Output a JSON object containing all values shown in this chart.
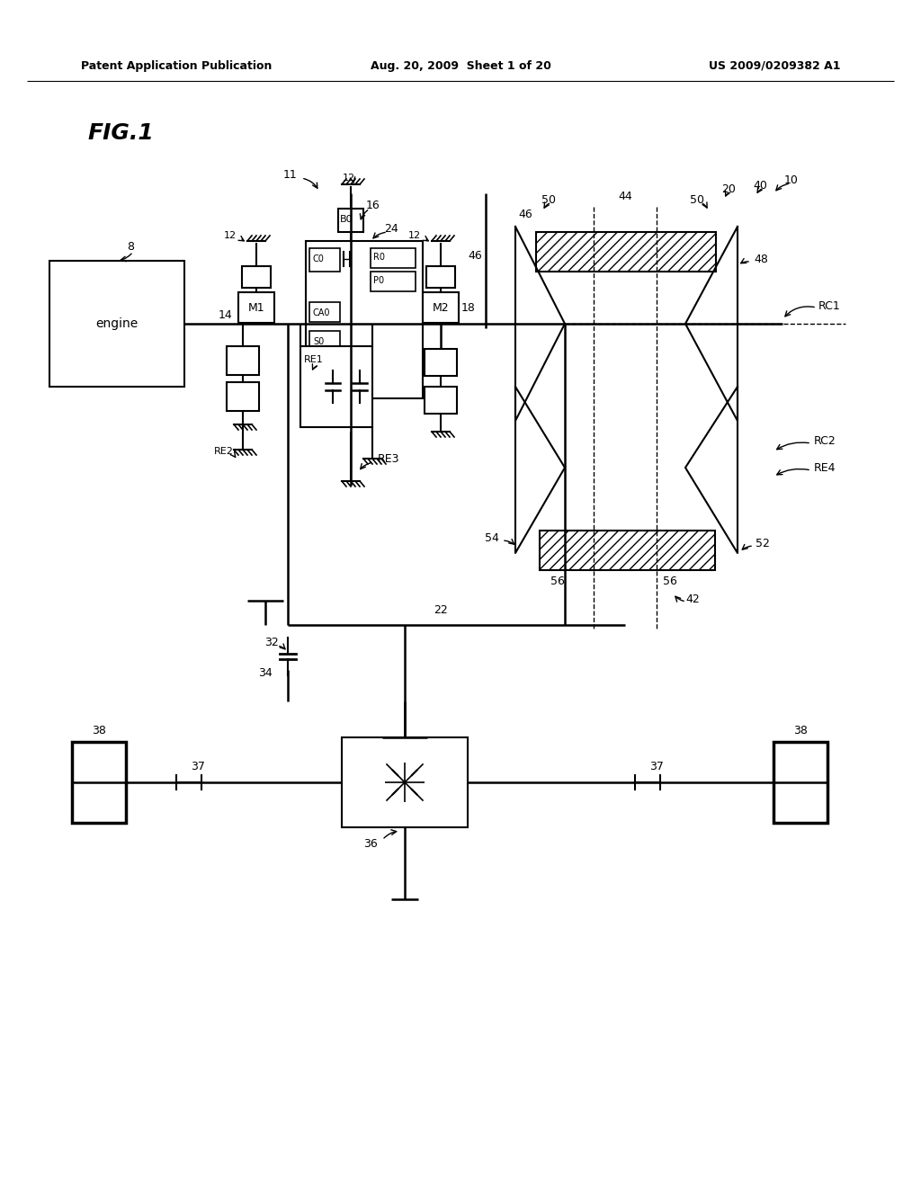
{
  "bg_color": "#ffffff",
  "title_left": "Patent Application Publication",
  "title_center": "Aug. 20, 2009  Sheet 1 of 20",
  "title_right": "US 2009/0209382 A1",
  "fig_label": "FIG.1"
}
